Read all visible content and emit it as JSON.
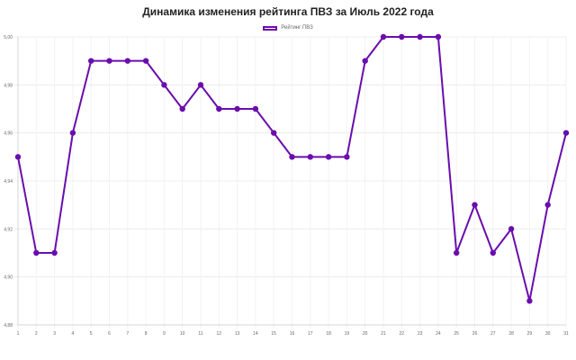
{
  "chart_data": {
    "type": "line",
    "title": "Динамика изменения рейтинга ПВЗ за Июль 2022 года",
    "xlabel": "",
    "ylabel": "",
    "x": [
      1,
      2,
      3,
      4,
      5,
      6,
      7,
      8,
      9,
      10,
      11,
      12,
      13,
      14,
      15,
      16,
      17,
      18,
      19,
      20,
      21,
      22,
      23,
      24,
      25,
      26,
      27,
      28,
      29,
      30,
      31
    ],
    "series": [
      {
        "name": "Рейтинг ПВЗ",
        "color": "#6a0dad",
        "values": [
          4.95,
          4.91,
          4.91,
          4.96,
          4.99,
          4.99,
          4.99,
          4.99,
          4.98,
          4.97,
          4.98,
          4.97,
          4.97,
          4.97,
          4.96,
          4.95,
          4.95,
          4.95,
          4.95,
          4.99,
          5.0,
          5.0,
          5.0,
          5.0,
          4.91,
          4.93,
          4.91,
          4.92,
          4.89,
          4.93,
          4.96
        ]
      }
    ],
    "ylim": [
      4.88,
      5.0
    ],
    "yticks": [
      "4,88",
      "4,90",
      "4,92",
      "4,94",
      "4,96",
      "4,98",
      "5,00"
    ],
    "grid": true,
    "legend_position": "top-center"
  }
}
